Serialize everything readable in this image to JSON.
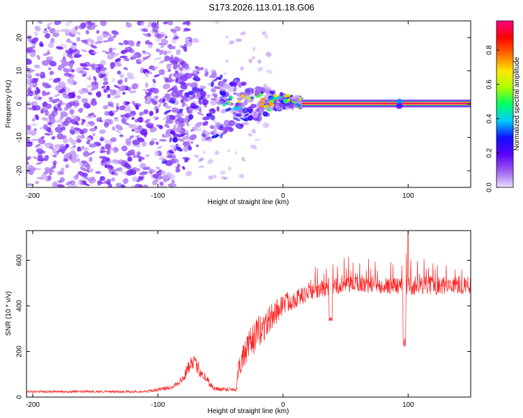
{
  "title": "S173.2026.113.01.18.G06",
  "chart_data": [
    {
      "type": "heatmap",
      "name": "spectrogram",
      "xlabel": "Height of straight line (km)",
      "ylabel": "Frequency (Hz)",
      "xlim": [
        -205,
        150
      ],
      "ylim": [
        -25,
        25
      ],
      "xticks": [
        -200,
        -100,
        0,
        100
      ],
      "yticks": [
        -20,
        -10,
        0,
        10,
        20
      ],
      "colorbar": {
        "label": "Normalized spectral amplitude",
        "range": [
          0,
          0.97
        ],
        "ticks": [
          0.0,
          0.2,
          0.4,
          0.6,
          0.8
        ],
        "tick_labels": [
          "0.0",
          "0.2",
          "0.4",
          "0.6",
          "0.8"
        ],
        "colors": [
          "#e9e0ff",
          "#9b5cf0",
          "#5a00ff",
          "#1010ff",
          "#00ccff",
          "#00ff66",
          "#aaff00",
          "#ffe600",
          "#ff6a00",
          "#ff0000",
          "#ff0080"
        ]
      },
      "line_x_start": 15,
      "line_freq": 0.2,
      "line_amplitude": 0.97,
      "dense_noise_range": [
        -205,
        -95
      ],
      "transition_range": [
        -95,
        15
      ]
    },
    {
      "type": "line",
      "name": "snr",
      "xlabel": "Height of straight line (km)",
      "ylabel": "SNR (10 * v/v)",
      "xlim": [
        -205,
        150
      ],
      "ylim": [
        0,
        730
      ],
      "xticks": [
        -200,
        -100,
        0,
        100
      ],
      "yticks": [
        0,
        200,
        400,
        600
      ],
      "color": "#ff2020",
      "series_profile": {
        "x": [
          -205,
          -110,
          -90,
          -80,
          -73,
          -65,
          -55,
          -37,
          -36,
          -25,
          -20,
          -10,
          0,
          20,
          40,
          60,
          100,
          150
        ],
        "baseline": [
          22,
          22,
          38,
          70,
          150,
          95,
          32,
          30,
          110,
          220,
          250,
          320,
          390,
          440,
          470,
          480,
          470,
          475
        ],
        "spread": [
          10,
          10,
          20,
          40,
          70,
          60,
          20,
          20,
          100,
          140,
          150,
          120,
          100,
          70,
          70,
          70,
          80,
          80
        ]
      },
      "dips": [
        {
          "x": 38,
          "y": 315
        },
        {
          "x": 97,
          "y": 220
        }
      ],
      "spike": {
        "x": 100,
        "y": 730
      }
    }
  ]
}
